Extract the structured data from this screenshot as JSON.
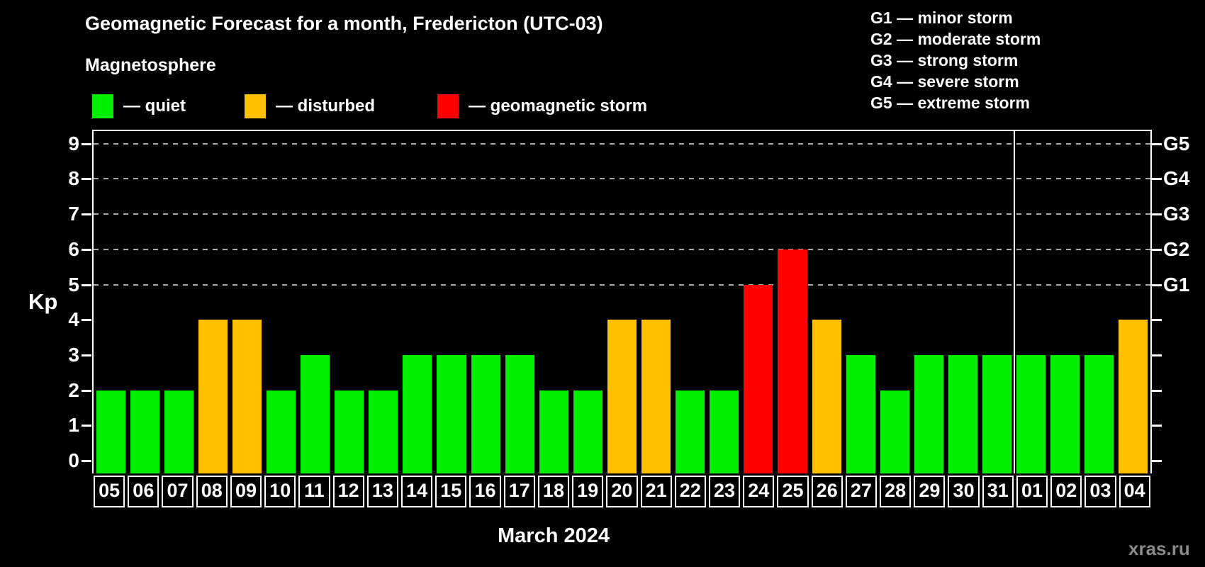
{
  "header": {
    "title": "Geomagnetic Forecast for a month, Fredericton (UTC-03)",
    "subtitle": "Magnetosphere"
  },
  "legend": {
    "items": [
      {
        "key": "quiet",
        "label": "— quiet",
        "color": "#00f000"
      },
      {
        "key": "disturbed",
        "label": "— disturbed",
        "color": "#ffc000"
      },
      {
        "key": "storm",
        "label": "— geomagnetic storm",
        "color": "#ff0000"
      }
    ]
  },
  "storm_scale_legend": {
    "items": [
      {
        "label": "G1 — minor storm"
      },
      {
        "label": "G2 — moderate storm"
      },
      {
        "label": "G3 — strong storm"
      },
      {
        "label": "G4 — severe storm"
      },
      {
        "label": "G5 — extreme storm"
      }
    ]
  },
  "chart_data": {
    "type": "bar",
    "title": "Geomagnetic Forecast for a month, Fredericton (UTC-03)",
    "ylabel": "Kp",
    "xlabel": "March 2024",
    "ylim": [
      0,
      9.4
    ],
    "yticks": [
      0,
      1,
      2,
      3,
      4,
      5,
      6,
      7,
      8,
      9
    ],
    "gridlines_at_kp": [
      5,
      6,
      7,
      8,
      9
    ],
    "grid_color": "#aaaaaa",
    "legend_position": "top-left",
    "right_axis": [
      {
        "label": "G1",
        "kp": 5
      },
      {
        "label": "G2",
        "kp": 6
      },
      {
        "label": "G3",
        "kp": 7
      },
      {
        "label": "G4",
        "kp": 8
      },
      {
        "label": "G5",
        "kp": 9
      }
    ],
    "categories": [
      "05",
      "06",
      "07",
      "08",
      "09",
      "10",
      "11",
      "12",
      "13",
      "14",
      "15",
      "16",
      "17",
      "18",
      "19",
      "20",
      "21",
      "22",
      "23",
      "24",
      "25",
      "26",
      "27",
      "28",
      "29",
      "30",
      "31",
      "01",
      "02",
      "03",
      "04"
    ],
    "values": [
      2,
      2,
      2,
      4,
      4,
      2,
      3,
      2,
      2,
      3,
      3,
      3,
      3,
      2,
      2,
      4,
      4,
      2,
      2,
      5,
      6,
      4,
      3,
      2,
      3,
      3,
      3,
      3,
      3,
      3,
      4
    ],
    "statuses": [
      "quiet",
      "quiet",
      "quiet",
      "disturbed",
      "disturbed",
      "quiet",
      "quiet",
      "quiet",
      "quiet",
      "quiet",
      "quiet",
      "quiet",
      "quiet",
      "quiet",
      "quiet",
      "disturbed",
      "disturbed",
      "quiet",
      "quiet",
      "storm",
      "storm",
      "disturbed",
      "quiet",
      "quiet",
      "quiet",
      "quiet",
      "quiet",
      "quiet",
      "quiet",
      "quiet",
      "disturbed"
    ],
    "status_colors": {
      "quiet": "#00f000",
      "disturbed": "#ffc000",
      "storm": "#ff0000"
    },
    "month_separator_after_index": 26
  },
  "footer": {
    "xaxis_title": "March 2024",
    "watermark": "xras.ru"
  }
}
